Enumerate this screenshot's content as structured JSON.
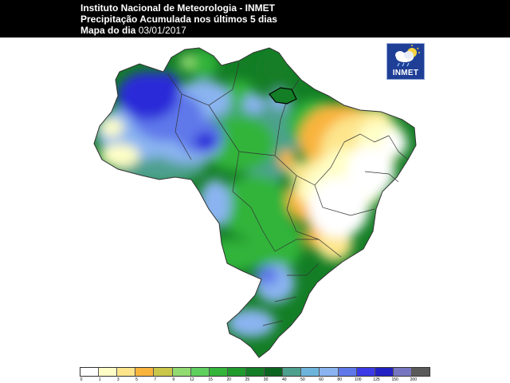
{
  "header": {
    "line1": "Instituto Nacional de Meteorologia - INMET",
    "line2": "Precipitação Acumulada nos últimos 5 dias",
    "line3_label": "Mapa do dia",
    "line3_date": "03/01/2017"
  },
  "logo": {
    "text": "INMET",
    "icon": "sun-cloud-rain-icon"
  },
  "legend": {
    "colors": [
      "#ffffff",
      "#fefec6",
      "#fde58c",
      "#f9b43c",
      "#c9c64a",
      "#92da72",
      "#5fcf5f",
      "#33b43b",
      "#1f9a2d",
      "#137e25",
      "#0c6421",
      "#4ea08e",
      "#6db4dd",
      "#8ab4f0",
      "#5e78ea",
      "#3a3ae6",
      "#2222c4",
      "#7676c0",
      "#5a5a5a"
    ],
    "ticks": [
      "0",
      "1",
      "3",
      "5",
      "7",
      "9",
      "12",
      "15",
      "20",
      "25",
      "30",
      "40",
      "50",
      "60",
      "80",
      "100",
      "125",
      "150",
      "200"
    ]
  },
  "map": {
    "colors": {
      "white": "#ffffff",
      "cream": "#fefec6",
      "yellow": "#fde58c",
      "orange": "#f9b43c",
      "lgreen": "#92da72",
      "green": "#33b43b",
      "dgreen": "#137e25",
      "teal": "#4ea08e",
      "lblue": "#8ab4f0",
      "blue": "#5e78ea",
      "dblue": "#2a2ad8",
      "border": "#333333"
    }
  }
}
